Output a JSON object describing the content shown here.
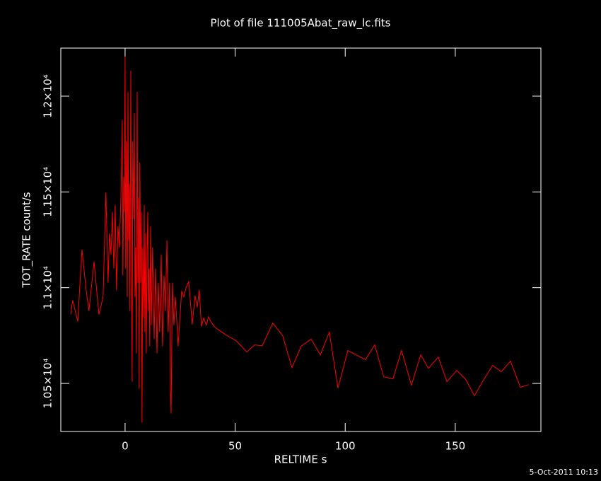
{
  "chart_data": {
    "type": "line",
    "title": "Plot of file 111005Abat_raw_lc.fits",
    "xlabel": "RELTIME  s",
    "ylabel": "TOT_RATE  count/s",
    "footer": "5-Oct-2011 10:13",
    "background": "#000000",
    "axis_color": "#ffffff",
    "xlim": [
      -29.2,
      188.9
    ],
    "ylim": [
      10249,
      12251
    ],
    "xticks": [
      0,
      50,
      100,
      150
    ],
    "yticks": [
      {
        "value": 10500,
        "label": "1.05×10⁴"
      },
      {
        "value": 11000,
        "label": "1.1×10⁴"
      },
      {
        "value": 11500,
        "label": "1.15×10⁴"
      },
      {
        "value": 12000,
        "label": "1.2×10⁴"
      }
    ],
    "series": [
      {
        "color": "#ff0000",
        "x": [
          -24.7,
          -23.8,
          -21.5,
          -19.6,
          -17.7,
          -16.4,
          -14.1,
          -11.9,
          -10.0,
          -8.7,
          -7.7,
          -7.1,
          -6.4,
          -5.8,
          -5.1,
          -4.5,
          -3.9,
          -3.2,
          -2.6,
          -1.9,
          -1.3,
          -1.0,
          -0.6,
          -0.3,
          0,
          0.3,
          0.6,
          1.0,
          1.3,
          1.6,
          1.9,
          2.2,
          2.6,
          2.9,
          3.2,
          3.5,
          3.9,
          4.2,
          4.5,
          4.8,
          5.1,
          5.5,
          5.8,
          6.1,
          6.4,
          6.7,
          7.1,
          7.4,
          7.7,
          8.0,
          8.4,
          8.7,
          9.0,
          9.3,
          9.6,
          10.0,
          10.3,
          10.6,
          10.9,
          11.2,
          11.6,
          11.9,
          12.5,
          13.2,
          13.8,
          14.5,
          15.1,
          15.7,
          16.4,
          17.0,
          17.7,
          18.3,
          19.0,
          19.6,
          20.2,
          20.6,
          20.9,
          21.5,
          22.2,
          22.8,
          23.4,
          24.1,
          24.7,
          25.7,
          26.7,
          27.6,
          28.9,
          30.5,
          31.8,
          32.8,
          33.7,
          34.7,
          35.7,
          36.9,
          37.9,
          38.9,
          40.5,
          42.1,
          45.9,
          50.4,
          55.3,
          58.8,
          62.3,
          67.1,
          71.6,
          75.8,
          80.0,
          84.5,
          88.7,
          92.8,
          96.7,
          101.2,
          105.0,
          109.2,
          113.4,
          117.5,
          121.7,
          125.6,
          130.1,
          134.3,
          137.8,
          142.3,
          146.2,
          150.7,
          154.8,
          158.7,
          162.9,
          167.0,
          170.9,
          175.1,
          179.6,
          183.4
        ],
        "values": [
          10860,
          10934,
          10823,
          11199,
          10989,
          10878,
          11136,
          10860,
          10952,
          11498,
          11026,
          11284,
          11173,
          11395,
          11100,
          11432,
          10989,
          11321,
          11210,
          11469,
          11875,
          11063,
          11579,
          11395,
          12207,
          11100,
          11764,
          10952,
          12022,
          11247,
          11542,
          10878,
          12133,
          11173,
          10509,
          11764,
          11358,
          11911,
          10952,
          11210,
          10657,
          12022,
          11026,
          11469,
          10472,
          11653,
          11026,
          11395,
          10295,
          11210,
          10841,
          11432,
          10768,
          11284,
          10657,
          11173,
          11395,
          10878,
          11100,
          10694,
          11321,
          10804,
          11210,
          10731,
          11100,
          10657,
          11026,
          10768,
          11173,
          10694,
          11063,
          10878,
          11247,
          10768,
          11026,
          10472,
          10343,
          11026,
          10804,
          10952,
          10841,
          10694,
          10804,
          10982,
          10952,
          10996,
          11033,
          10808,
          10959,
          10897,
          10989,
          10797,
          10841,
          10804,
          10849,
          10823,
          10797,
          10782,
          10753,
          10723,
          10664,
          10701,
          10697,
          10815,
          10749,
          10583,
          10694,
          10731,
          10649,
          10768,
          10476,
          10672,
          10649,
          10624,
          10701,
          10535,
          10524,
          10672,
          10491,
          10649,
          10579,
          10638,
          10509,
          10568,
          10520,
          10435,
          10520,
          10594,
          10561,
          10616,
          10480,
          10494
        ]
      }
    ]
  }
}
